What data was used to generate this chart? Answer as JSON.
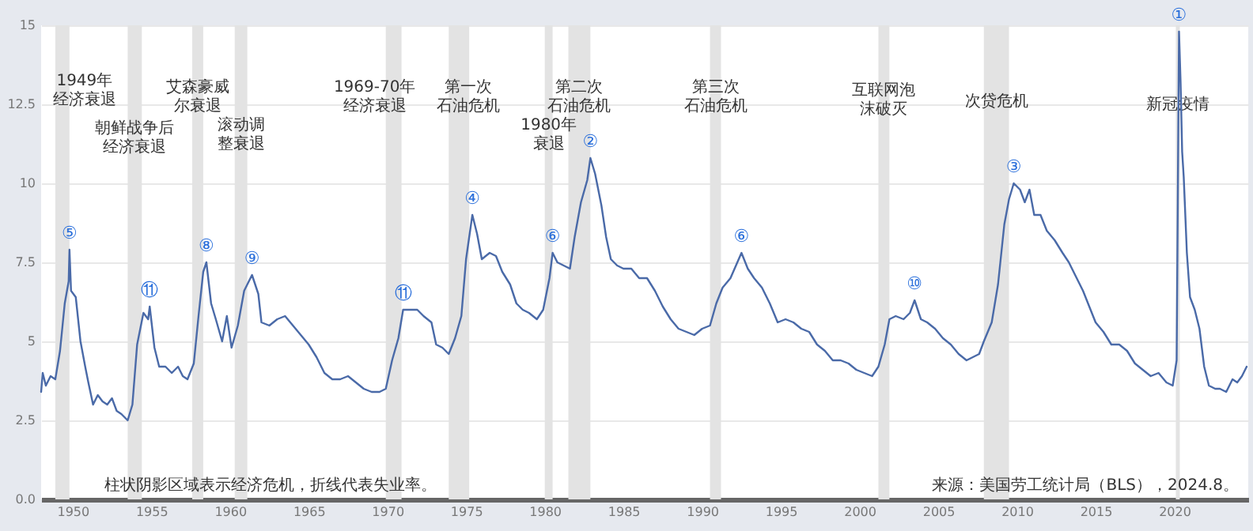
{
  "chart_data": {
    "type": "line",
    "x": [
      1948.0,
      1948.1,
      1948.3,
      1948.6,
      1948.9,
      1949.2,
      1949.5,
      1949.75,
      1949.8,
      1949.9,
      1950.2,
      1950.5,
      1950.8,
      1951.0,
      1951.3,
      1951.6,
      1951.9,
      1952.2,
      1952.5,
      1952.8,
      1953.1,
      1953.5,
      1953.8,
      1954.1,
      1954.5,
      1954.8,
      1954.9,
      1955.2,
      1955.5,
      1955.9,
      1956.3,
      1956.7,
      1957.0,
      1957.3,
      1957.7,
      1958.0,
      1958.3,
      1958.5,
      1958.8,
      1959.1,
      1959.5,
      1959.8,
      1960.1,
      1960.5,
      1960.9,
      1961.4,
      1961.8,
      1962.0,
      1962.5,
      1963.0,
      1963.5,
      1964.0,
      1964.5,
      1965.0,
      1965.5,
      1966.0,
      1966.5,
      1967.0,
      1967.5,
      1968.0,
      1968.5,
      1969.0,
      1969.5,
      1969.9,
      1970.3,
      1970.7,
      1971.0,
      1971.5,
      1971.9,
      1972.3,
      1972.8,
      1973.1,
      1973.5,
      1973.9,
      1974.3,
      1974.7,
      1975.0,
      1975.4,
      1975.7,
      1976.0,
      1976.5,
      1976.9,
      1977.3,
      1977.8,
      1978.2,
      1978.6,
      1979.0,
      1979.5,
      1979.9,
      1980.3,
      1980.5,
      1980.8,
      1981.2,
      1981.6,
      1981.9,
      1982.3,
      1982.7,
      1982.9,
      1983.2,
      1983.6,
      1983.9,
      1984.2,
      1984.6,
      1985.0,
      1985.5,
      1986.0,
      1986.5,
      1987.0,
      1987.5,
      1988.0,
      1988.5,
      1989.0,
      1989.5,
      1990.0,
      1990.5,
      1990.9,
      1991.3,
      1991.8,
      1992.5,
      1992.9,
      1993.3,
      1993.8,
      1994.3,
      1994.8,
      1995.3,
      1995.8,
      1996.3,
      1996.8,
      1997.3,
      1997.8,
      1998.3,
      1998.8,
      1999.3,
      1999.8,
      2000.3,
      2000.8,
      2001.2,
      2001.6,
      2001.9,
      2002.3,
      2002.8,
      2003.2,
      2003.5,
      2003.9,
      2004.3,
      2004.8,
      2005.3,
      2005.8,
      2006.3,
      2006.8,
      2007.2,
      2007.6,
      2007.9,
      2008.4,
      2008.8,
      2009.2,
      2009.5,
      2009.8,
      2010.2,
      2010.5,
      2010.8,
      2011.1,
      2011.5,
      2011.9,
      2012.4,
      2012.9,
      2013.3,
      2013.8,
      2014.2,
      2014.6,
      2015.0,
      2015.5,
      2016.0,
      2016.5,
      2017.0,
      2017.5,
      2018.0,
      2018.5,
      2019.0,
      2019.5,
      2019.9,
      2020.15,
      2020.3,
      2020.4,
      2020.5,
      2020.6,
      2020.8,
      2021.0,
      2021.3,
      2021.6,
      2021.9,
      2022.2,
      2022.6,
      2022.9,
      2023.3,
      2023.7,
      2024.0,
      2024.3,
      2024.6
    ],
    "series": [
      {
        "color": "#4a6aa8",
        "values": [
          3.4,
          4.0,
          3.6,
          3.9,
          3.8,
          4.7,
          6.2,
          6.9,
          7.9,
          6.6,
          6.4,
          5.0,
          4.2,
          3.7,
          3.0,
          3.3,
          3.1,
          3.0,
          3.2,
          2.8,
          2.7,
          2.5,
          3.0,
          4.9,
          5.9,
          5.7,
          6.1,
          4.8,
          4.2,
          4.2,
          4.0,
          4.2,
          3.9,
          3.8,
          4.3,
          5.8,
          7.2,
          7.5,
          6.2,
          5.7,
          5.0,
          5.8,
          4.8,
          5.5,
          6.6,
          7.1,
          6.5,
          5.6,
          5.5,
          5.7,
          5.8,
          5.5,
          5.2,
          4.9,
          4.5,
          4.0,
          3.8,
          3.8,
          3.9,
          3.7,
          3.5,
          3.4,
          3.4,
          3.5,
          4.4,
          5.1,
          6.0,
          6.0,
          6.0,
          5.8,
          5.6,
          4.9,
          4.8,
          4.6,
          5.1,
          5.8,
          7.6,
          9.0,
          8.4,
          7.6,
          7.8,
          7.7,
          7.2,
          6.8,
          6.2,
          6.0,
          5.9,
          5.7,
          6.0,
          7.0,
          7.8,
          7.5,
          7.4,
          7.3,
          8.3,
          9.4,
          10.1,
          10.8,
          10.3,
          9.3,
          8.3,
          7.6,
          7.4,
          7.3,
          7.3,
          7.0,
          7.0,
          6.6,
          6.1,
          5.7,
          5.4,
          5.3,
          5.2,
          5.4,
          5.5,
          6.2,
          6.7,
          7.0,
          7.8,
          7.3,
          7.0,
          6.7,
          6.2,
          5.6,
          5.7,
          5.6,
          5.4,
          5.3,
          4.9,
          4.7,
          4.4,
          4.4,
          4.3,
          4.1,
          4.0,
          3.9,
          4.2,
          4.9,
          5.7,
          5.8,
          5.7,
          5.9,
          6.3,
          5.7,
          5.6,
          5.4,
          5.1,
          4.9,
          4.6,
          4.4,
          4.5,
          4.6,
          5.0,
          5.6,
          6.8,
          8.7,
          9.5,
          10.0,
          9.8,
          9.4,
          9.8,
          9.0,
          9.0,
          8.5,
          8.2,
          7.8,
          7.5,
          7.0,
          6.6,
          6.1,
          5.6,
          5.3,
          4.9,
          4.9,
          4.7,
          4.3,
          4.1,
          3.9,
          4.0,
          3.7,
          3.6,
          4.4,
          14.8,
          13.2,
          11.0,
          10.2,
          7.8,
          6.4,
          6.0,
          5.4,
          4.2,
          3.6,
          3.5,
          3.5,
          3.4,
          3.8,
          3.7,
          3.9,
          4.2
        ]
      }
    ],
    "xlim": [
      1948,
      2024.7
    ],
    "xticks": [
      1950,
      1955,
      1960,
      1965,
      1970,
      1975,
      1980,
      1985,
      1990,
      1995,
      2000,
      2005,
      2010,
      2015,
      2020
    ],
    "ylim": [
      0,
      15
    ],
    "yticks": [
      {
        "value": 0,
        "label": "0.0"
      },
      2.5,
      5,
      7.5,
      10,
      12.5,
      15
    ],
    "grid": "y",
    "bands": [
      {
        "axis": "x",
        "from": 1948.9,
        "to": 1949.8,
        "label": "1949年经济衰退",
        "color": "#e3e3e3"
      },
      {
        "axis": "x",
        "from": 1953.5,
        "to": 1954.4,
        "label": "朝鲜战争后经济衰退",
        "color": "#e3e3e3"
      },
      {
        "axis": "x",
        "from": 1957.6,
        "to": 1958.3,
        "label": "艾森豪威尔衰退",
        "color": "#e3e3e3"
      },
      {
        "axis": "x",
        "from": 1960.3,
        "to": 1961.1,
        "label": "滚动调整衰退",
        "color": "#e3e3e3"
      },
      {
        "axis": "x",
        "from": 1969.9,
        "to": 1970.9,
        "label": "1969-70年经济衰退",
        "color": "#e3e3e3"
      },
      {
        "axis": "x",
        "from": 1973.9,
        "to": 1975.2,
        "label": "第一次石油危机",
        "color": "#e3e3e3"
      },
      {
        "axis": "x",
        "from": 1980.0,
        "to": 1980.5,
        "label": "1980年衰退",
        "color": "#e3e3e3"
      },
      {
        "axis": "x",
        "from": 1981.5,
        "to": 1982.9,
        "label": "第二次石油危机",
        "color": "#e3e3e3"
      },
      {
        "axis": "x",
        "from": 1990.5,
        "to": 1991.2,
        "label": "第三次石油危机",
        "color": "#e3e3e3"
      },
      {
        "axis": "x",
        "from": 2001.2,
        "to": 2001.9,
        "label": "互联网泡沫破灭",
        "color": "#e3e3e3"
      },
      {
        "axis": "x",
        "from": 2007.9,
        "to": 2009.5,
        "label": "次贷危机",
        "color": "#e3e3e3"
      },
      {
        "axis": "x",
        "from": 2020.1,
        "to": 2020.35,
        "label": "新冠疫情",
        "color": "#e3e3e3"
      }
    ],
    "annotations": [
      {
        "text": "⑤",
        "x": 1949.8,
        "y": 7.9
      },
      {
        "text": "⑪",
        "x": 1954.9,
        "y": 6.1
      },
      {
        "text": "⑧",
        "x": 1958.5,
        "y": 7.5
      },
      {
        "text": "⑨",
        "x": 1961.4,
        "y": 7.1
      },
      {
        "text": "⑪",
        "x": 1971.0,
        "y": 6.0
      },
      {
        "text": "④",
        "x": 1975.4,
        "y": 9.0
      },
      {
        "text": "⑥",
        "x": 1980.5,
        "y": 7.8
      },
      {
        "text": "②",
        "x": 1982.9,
        "y": 10.8
      },
      {
        "text": "⑥",
        "x": 1992.5,
        "y": 7.8
      },
      {
        "text": "⑩",
        "x": 2003.5,
        "y": 6.3
      },
      {
        "text": "③",
        "x": 2009.8,
        "y": 10.0
      },
      {
        "text": "①",
        "x": 2020.3,
        "y": 14.8
      },
      "柱状阴影区域表示经济危机，折线代表失业率。",
      "来源：美国劳工统计局（BLS），2024.8。"
    ]
  }
}
